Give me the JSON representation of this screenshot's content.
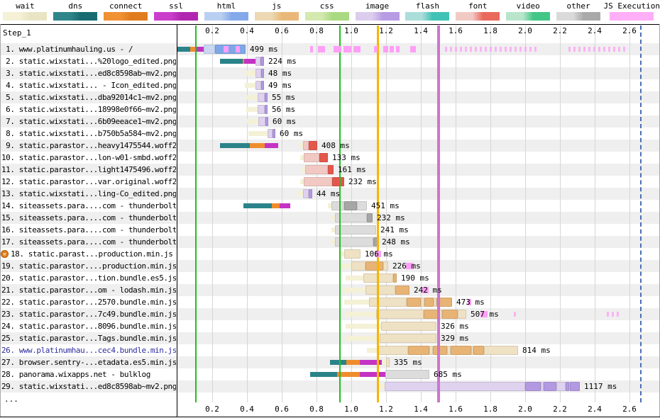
{
  "legend": {
    "items": [
      {
        "label": "wait",
        "c1": "#f4f1d6",
        "c2": "#e9e4c4"
      },
      {
        "label": "dns",
        "c1": "#2e868b",
        "c2": "#196b72"
      },
      {
        "label": "connect",
        "c1": "#f09134",
        "c2": "#e07c1d"
      },
      {
        "label": "ssl",
        "c1": "#cb3ecb",
        "c2": "#b126b1"
      },
      {
        "label": "html",
        "c1": "#b9cff2",
        "c2": "#84a9e9"
      },
      {
        "label": "js",
        "c1": "#ecd9b4",
        "c2": "#e9b878"
      },
      {
        "label": "css",
        "c1": "#d3e9ae",
        "c2": "#a9da81"
      },
      {
        "label": "image",
        "c1": "#dccdee",
        "c2": "#b79ce3"
      },
      {
        "label": "flash",
        "c1": "#abdeda",
        "c2": "#41c2b6"
      },
      {
        "label": "font",
        "c1": "#f2cac4",
        "c2": "#e96a5d"
      },
      {
        "label": "video",
        "c1": "#b8e5cc",
        "c2": "#43c787"
      },
      {
        "label": "other",
        "c1": "#dadada",
        "c2": "#a9a9a9"
      },
      {
        "label": "JS Execution",
        "c1": "#ffaef8",
        "c2": "#ffaef8"
      }
    ]
  },
  "panel": {
    "title": "Step_1",
    "more": "..."
  },
  "units": {
    "ms": "ms"
  },
  "axis": {
    "ticks": [
      0.2,
      0.4,
      0.6,
      0.8,
      1.0,
      1.2,
      1.4,
      1.6,
      1.8,
      2.0,
      2.2,
      2.4,
      2.6
    ]
  },
  "markers": [
    {
      "t": 0.106,
      "color": "#21c021",
      "style": "solid",
      "w": 2
    },
    {
      "t": 0.935,
      "color": "#21c021",
      "style": "solid",
      "w": 2
    },
    {
      "t": 1.155,
      "color": "#f7b500",
      "style": "solid",
      "w": 3
    },
    {
      "t": 1.502,
      "color": "#cd75cd",
      "style": "solid",
      "w": 4
    },
    {
      "t": 2.665,
      "color": "#4a6fb5",
      "style": "dashed",
      "w": 2
    }
  ],
  "colors": {
    "stripe": "#efefef",
    "grid": "#d6d6d6",
    "exec": "#ff9ff6",
    "link_row": "#2d2d9f",
    "flag": "#e0801f",
    "bars": {
      "wait": "#f4f1d6",
      "dns": "#2a8389",
      "connect": "#ef8d2d",
      "ssl": "#c433c4",
      "html1": "#c9d7f2",
      "html2": "#7fa7e8",
      "js1": "#efe1c3",
      "js2": "#e8b475",
      "img1": "#ded2ef",
      "img2": "#b399e1",
      "font1": "#f2c8c2",
      "font2": "#e4584c",
      "other1": "#dcdcdc",
      "other2": "#a6a6a6"
    }
  },
  "chart_data": {
    "type": "waterfall",
    "x_unit": "seconds",
    "x_range": [
      0,
      2.77
    ],
    "grid": true,
    "rows": [
      {
        "n": 1,
        "label": "www.platinumhauling.us - /",
        "ms": 499,
        "seg": [
          [
            "dns",
            0,
            0.073
          ],
          [
            "connect",
            0.073,
            0.102
          ],
          [
            "ssl",
            0.102,
            0.151
          ],
          [
            "html1",
            0.151,
            0.216
          ],
          [
            "html2",
            0.216,
            0.392
          ]
        ],
        "exec": [
          [
            0.265,
            0.294
          ],
          [
            0.335,
            0.359
          ],
          [
            0.763,
            0.78
          ],
          [
            0.808,
            0.849
          ],
          [
            0.898,
            0.943
          ],
          [
            0.955,
            1.0
          ],
          [
            1.012,
            1.053
          ],
          [
            1.131,
            1.151
          ],
          [
            1.184,
            1.212
          ],
          [
            1.22,
            1.245
          ],
          [
            1.257,
            1.278
          ],
          [
            1.339,
            1.371
          ]
        ],
        "exl": [
          [
            1.54,
            2.07
          ],
          [
            2.25,
            2.58
          ]
        ]
      },
      {
        "n": 2,
        "label": "static.wixstati...%20logo_edited.png",
        "ms": 224,
        "seg": [
          [
            "dns",
            0.245,
            0.376
          ],
          [
            "connect",
            0.376,
            0.384
          ],
          [
            "ssl",
            0.384,
            0.449
          ],
          [
            "img1",
            0.449,
            0.478
          ],
          [
            "img2",
            0.478,
            0.498
          ]
        ]
      },
      {
        "n": 3,
        "label": "static.wixstati...ed8c8598ab~mv2.png",
        "ms": 48,
        "seg": [
          [
            "wait",
            0.388,
            0.449
          ],
          [
            "img1",
            0.449,
            0.482
          ],
          [
            "img2",
            0.482,
            0.498
          ]
        ]
      },
      {
        "n": 4,
        "label": "static.wixstati... - Icon_edited.png",
        "ms": 49,
        "seg": [
          [
            "wait",
            0.388,
            0.449
          ],
          [
            "img1",
            0.449,
            0.482
          ],
          [
            "img2",
            0.482,
            0.498
          ]
        ]
      },
      {
        "n": 5,
        "label": "static.wixstati...dba92014c1~mv2.png",
        "ms": 55,
        "seg": [
          [
            "wait",
            0.396,
            0.461
          ],
          [
            "img1",
            0.461,
            0.502
          ],
          [
            "img2",
            0.502,
            0.518
          ]
        ]
      },
      {
        "n": 6,
        "label": "static.wixstati...18998e0f66~mv2.png",
        "ms": 56,
        "seg": [
          [
            "wait",
            0.396,
            0.461
          ],
          [
            "img1",
            0.461,
            0.502
          ],
          [
            "img2",
            0.502,
            0.518
          ]
        ]
      },
      {
        "n": 7,
        "label": "static.wixstati...6b09eeace1~mv2.png",
        "ms": 60,
        "seg": [
          [
            "wait",
            0.4,
            0.465
          ],
          [
            "img1",
            0.465,
            0.506
          ],
          [
            "img2",
            0.506,
            0.522
          ]
        ]
      },
      {
        "n": 8,
        "label": "static.wixstati...b750b5a584~mv2.png",
        "ms": 60,
        "seg": [
          [
            "wait",
            0.408,
            0.518
          ],
          [
            "img1",
            0.518,
            0.547
          ],
          [
            "img2",
            0.547,
            0.563
          ]
        ]
      },
      {
        "n": 9,
        "label": "static.parastor...heavy1475544.woff2",
        "ms": 408,
        "seg": [
          [
            "dns",
            0.245,
            0.416
          ],
          [
            "connect",
            0.416,
            0.502
          ],
          [
            "ssl",
            0.502,
            0.58
          ],
          [
            "wait",
            0.702,
            0.722
          ],
          [
            "font1",
            0.722,
            0.755
          ],
          [
            "font2",
            0.755,
            0.804
          ]
        ]
      },
      {
        "n": 10,
        "label": "static.parastor...lon-w01-smbd.woff2",
        "ms": 133,
        "seg": [
          [
            "wait",
            0.706,
            0.727
          ],
          [
            "font1",
            0.727,
            0.816
          ],
          [
            "font2",
            0.816,
            0.865
          ]
        ]
      },
      {
        "n": 11,
        "label": "static.parastor...light1475496.woff2",
        "ms": 161,
        "seg": [
          [
            "wait",
            0.71,
            0.735
          ],
          [
            "font1",
            0.735,
            0.865
          ],
          [
            "font2",
            0.865,
            0.898
          ]
        ]
      },
      {
        "n": 12,
        "label": "static.parastor...var.original.woff2",
        "ms": 232,
        "seg": [
          [
            "wait",
            0.706,
            0.727
          ],
          [
            "font1",
            0.727,
            0.89
          ],
          [
            "font2",
            0.89,
            0.959
          ]
        ]
      },
      {
        "n": 13,
        "label": "static.wixstati...ling-Co_edited.png",
        "ms": 44,
        "seg": [
          [
            "wait",
            0.694,
            0.722
          ],
          [
            "img1",
            0.722,
            0.755
          ],
          [
            "img2",
            0.755,
            0.776
          ]
        ]
      },
      {
        "n": 14,
        "label": "siteassets.para....com - thunderbolt",
        "ms": 451,
        "seg": [
          [
            "dns",
            0.38,
            0.543
          ],
          [
            "connect",
            0.543,
            0.588
          ],
          [
            "ssl",
            0.588,
            0.649
          ],
          [
            "wait",
            0.865,
            0.886
          ],
          [
            "other1",
            0.886,
            0.959
          ],
          [
            "other2",
            0.959,
            1.033
          ],
          [
            "other1",
            1.033,
            1.09
          ]
        ]
      },
      {
        "n": 15,
        "label": "siteassets.para....com - thunderbolt",
        "ms": 232,
        "seg": [
          [
            "wait",
            0.886,
            0.906
          ],
          [
            "other1",
            0.906,
            1.09
          ],
          [
            "other2",
            1.09,
            1.122
          ]
        ]
      },
      {
        "n": 16,
        "label": "siteassets.para....com - thunderbolt",
        "ms": 241,
        "seg": [
          [
            "wait",
            0.886,
            0.906
          ],
          [
            "other1",
            0.906,
            1.143
          ]
        ]
      },
      {
        "n": 17,
        "label": "siteassets.para....com - thunderbolt",
        "ms": 248,
        "seg": [
          [
            "wait",
            0.886,
            0.906
          ],
          [
            "other1",
            0.906,
            1.127
          ],
          [
            "other2",
            1.127,
            1.151
          ]
        ]
      },
      {
        "n": 18,
        "flag": true,
        "label": "static.parast...production.min.js",
        "ms": 106,
        "seg": [
          [
            "wait",
            0.939,
            0.959
          ],
          [
            "js1",
            0.959,
            1.053
          ]
        ],
        "exec": [
          [
            1.135,
            1.172
          ]
        ]
      },
      {
        "n": 19,
        "label": "static.parastor....production.min.js",
        "ms": 226,
        "seg": [
          [
            "wait",
            0.939,
            1.0
          ],
          [
            "js1",
            1.0,
            1.082
          ],
          [
            "js2",
            1.082,
            1.184
          ],
          [
            "js1",
            1.184,
            1.212
          ]
        ],
        "exec": [
          [
            1.314,
            1.36
          ]
        ]
      },
      {
        "n": 20,
        "label": "static.parastor...tion.bundle.es5.js",
        "ms": 190,
        "seg": [
          [
            "wait",
            0.967,
            1.069
          ],
          [
            "js1",
            1.069,
            1.241
          ],
          [
            "js2",
            1.241,
            1.261
          ]
        ]
      },
      {
        "n": 21,
        "label": "static.parastor...om - lodash.min.js",
        "ms": 242,
        "seg": [
          [
            "wait",
            0.951,
            1.082
          ],
          [
            "js1",
            1.082,
            1.253
          ],
          [
            "js2",
            1.253,
            1.335
          ]
        ],
        "exec": [
          [
            1.408,
            1.445
          ]
        ]
      },
      {
        "n": 22,
        "label": "static.parastor...2570.bundle.min.js",
        "ms": 473,
        "seg": [
          [
            "wait",
            0.959,
            1.102
          ],
          [
            "js1",
            1.102,
            1.318
          ],
          [
            "js2",
            1.318,
            1.4
          ],
          [
            "js1",
            1.4,
            1.42
          ],
          [
            "js2",
            1.42,
            1.473
          ],
          [
            "js1",
            1.473,
            1.49
          ],
          [
            "js2",
            1.49,
            1.58
          ]
        ],
        "exec": [
          [
            1.671,
            1.692
          ]
        ]
      },
      {
        "n": 23,
        "label": "static.parastor...7c49.bundle.min.js",
        "ms": 507,
        "seg": [
          [
            "wait",
            0.967,
            1.143
          ],
          [
            "js1",
            1.143,
            1.416
          ],
          [
            "js2",
            1.416,
            1.506
          ],
          [
            "js1",
            1.506,
            1.522
          ],
          [
            "js2",
            1.522,
            1.612
          ],
          [
            "js1",
            1.612,
            1.661
          ]
        ],
        "exec": [
          [
            1.743,
            1.784
          ]
        ],
        "exl": [
          [
            1.935,
            1.965
          ],
          [
            2.47,
            2.55
          ]
        ]
      },
      {
        "n": 24,
        "label": "static.parastor...8096.bundle.min.js",
        "ms": 326,
        "seg": [
          [
            "wait",
            0.967,
            1.171
          ],
          [
            "js1",
            1.171,
            1.49
          ]
        ]
      },
      {
        "n": 25,
        "label": "static.parastor...Tags.bundle.min.js",
        "ms": 329,
        "seg": [
          [
            "wait",
            0.971,
            1.163
          ],
          [
            "js1",
            1.163,
            1.49
          ]
        ]
      },
      {
        "n": 26,
        "link": true,
        "label": "www.platinumhau...cec4.bundle.min.js",
        "ms": 814,
        "seg": [
          [
            "wait",
            1.09,
            1.151
          ],
          [
            "js1",
            1.151,
            1.327
          ],
          [
            "js2",
            1.327,
            1.449
          ],
          [
            "js1",
            1.449,
            1.469
          ],
          [
            "js2",
            1.469,
            1.551
          ],
          [
            "js1",
            1.551,
            1.571
          ],
          [
            "js2",
            1.571,
            1.69
          ],
          [
            "js1",
            1.69,
            1.702
          ],
          [
            "js2",
            1.702,
            1.763
          ],
          [
            "js1",
            1.763,
            1.959
          ]
        ]
      },
      {
        "n": 27,
        "label": "browser.sentry-...etadata.es5.min.js",
        "ms": 335,
        "seg": [
          [
            "dns",
            0.878,
            0.971
          ],
          [
            "connect",
            0.971,
            1.049
          ],
          [
            "ssl",
            1.049,
            1.176
          ],
          [
            "wait",
            1.176,
            1.2
          ],
          [
            "js1",
            1.2,
            1.22
          ]
        ]
      },
      {
        "n": 28,
        "label": "panorama.wixapps.net - bulklog",
        "ms": 685,
        "seg": [
          [
            "dns",
            0.763,
            0.918
          ],
          [
            "connect",
            0.918,
            1.049
          ],
          [
            "ssl",
            1.049,
            1.196
          ],
          [
            "other1",
            1.196,
            1.449
          ]
        ]
      },
      {
        "n": 29,
        "label": "static.wixstati...ed8c8598ab~mv2.png",
        "ms": 1117,
        "seg": [
          [
            "wait",
            1.163,
            1.192
          ],
          [
            "img1",
            1.192,
            2.0
          ],
          [
            "img2",
            2.0,
            2.09
          ],
          [
            "img1",
            2.09,
            2.106
          ],
          [
            "img2",
            2.106,
            2.18
          ],
          [
            "img1",
            2.18,
            2.233
          ],
          [
            "img2",
            2.233,
            2.253
          ],
          [
            "img1",
            2.253,
            2.257
          ],
          [
            "img2",
            2.257,
            2.314
          ]
        ]
      }
    ]
  }
}
